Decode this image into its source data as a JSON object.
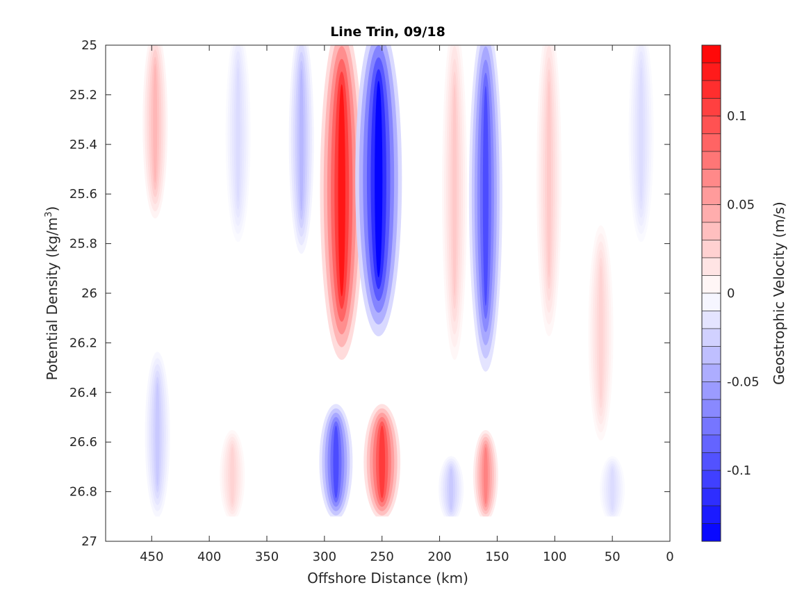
{
  "chart_data": {
    "type": "contour",
    "title": "Line Trin, 09/18",
    "xlabel": "Offshore Distance (km)",
    "ylabel_main": "Potential Density (kg/m",
    "ylabel_sup": "3",
    "ylabel_close": ")",
    "colorbar_label": "Geostrophic Velocity (m/s)",
    "xlim": [
      490,
      0
    ],
    "ylim": [
      25,
      27
    ],
    "x_reversed": true,
    "y_reversed": true,
    "x_ticks": [
      450,
      400,
      350,
      300,
      250,
      200,
      150,
      100,
      50,
      0
    ],
    "x_tick_labels": [
      "450",
      "400",
      "350",
      "300",
      "250",
      "200",
      "150",
      "100",
      "50",
      "0"
    ],
    "y_ticks": [
      25,
      25.2,
      25.4,
      25.6,
      25.8,
      26,
      26.2,
      26.4,
      26.6,
      26.8,
      27
    ],
    "y_tick_labels": [
      "25",
      "25.2",
      "25.4",
      "25.6",
      "25.8",
      "26",
      "26.2",
      "26.4",
      "26.6",
      "26.8",
      "27"
    ],
    "colorbar_range": [
      -0.14,
      0.14
    ],
    "colorbar_levels": 28,
    "colorbar_ticks": [
      0.1,
      0.05,
      0,
      -0.05,
      -0.1
    ],
    "colorbar_tick_labels": [
      "0.1",
      "0.05",
      "0",
      "-0.05",
      "-0.1"
    ],
    "colormap": {
      "positive": "#ff0000",
      "negative": "#0000ff",
      "zero": "#ffffff"
    },
    "data_depth_limit": 26.9,
    "grid": false,
    "velocity_features": [
      {
        "x": 285,
        "y_top": 25.0,
        "y_bottom": 26.3,
        "amplitude": 0.13
      },
      {
        "x": 253,
        "y_top": 25.0,
        "y_bottom": 26.2,
        "amplitude": -0.14
      },
      {
        "x": 160,
        "y_top": 25.0,
        "y_bottom": 26.35,
        "amplitude": -0.1
      },
      {
        "x": 187,
        "y_top": 25.0,
        "y_bottom": 26.3,
        "amplitude": 0.03
      },
      {
        "x": 447,
        "y_top": 25.0,
        "y_bottom": 25.7,
        "amplitude": 0.04
      },
      {
        "x": 105,
        "y_top": 25.0,
        "y_bottom": 26.2,
        "amplitude": 0.03
      },
      {
        "x": 375,
        "y_top": 25.0,
        "y_bottom": 25.8,
        "amplitude": -0.02
      },
      {
        "x": 320,
        "y_top": 25.0,
        "y_bottom": 25.85,
        "amplitude": -0.04
      },
      {
        "x": 25,
        "y_top": 25.0,
        "y_bottom": 25.8,
        "amplitude": -0.02
      },
      {
        "x": 60,
        "y_top": 25.8,
        "y_bottom": 26.6,
        "amplitude": 0.025
      },
      {
        "x": 290,
        "y_top": 26.5,
        "y_bottom": 26.9,
        "amplitude": -0.1
      },
      {
        "x": 250,
        "y_top": 26.5,
        "y_bottom": 26.9,
        "amplitude": 0.11
      },
      {
        "x": 160,
        "y_top": 26.6,
        "y_bottom": 26.9,
        "amplitude": 0.07
      },
      {
        "x": 190,
        "y_top": 26.7,
        "y_bottom": 26.9,
        "amplitude": -0.03
      },
      {
        "x": 380,
        "y_top": 26.6,
        "y_bottom": 26.9,
        "amplitude": 0.025
      },
      {
        "x": 445,
        "y_top": 26.3,
        "y_bottom": 26.9,
        "amplitude": -0.03
      },
      {
        "x": 50,
        "y_top": 26.7,
        "y_bottom": 26.9,
        "amplitude": -0.02
      }
    ]
  }
}
